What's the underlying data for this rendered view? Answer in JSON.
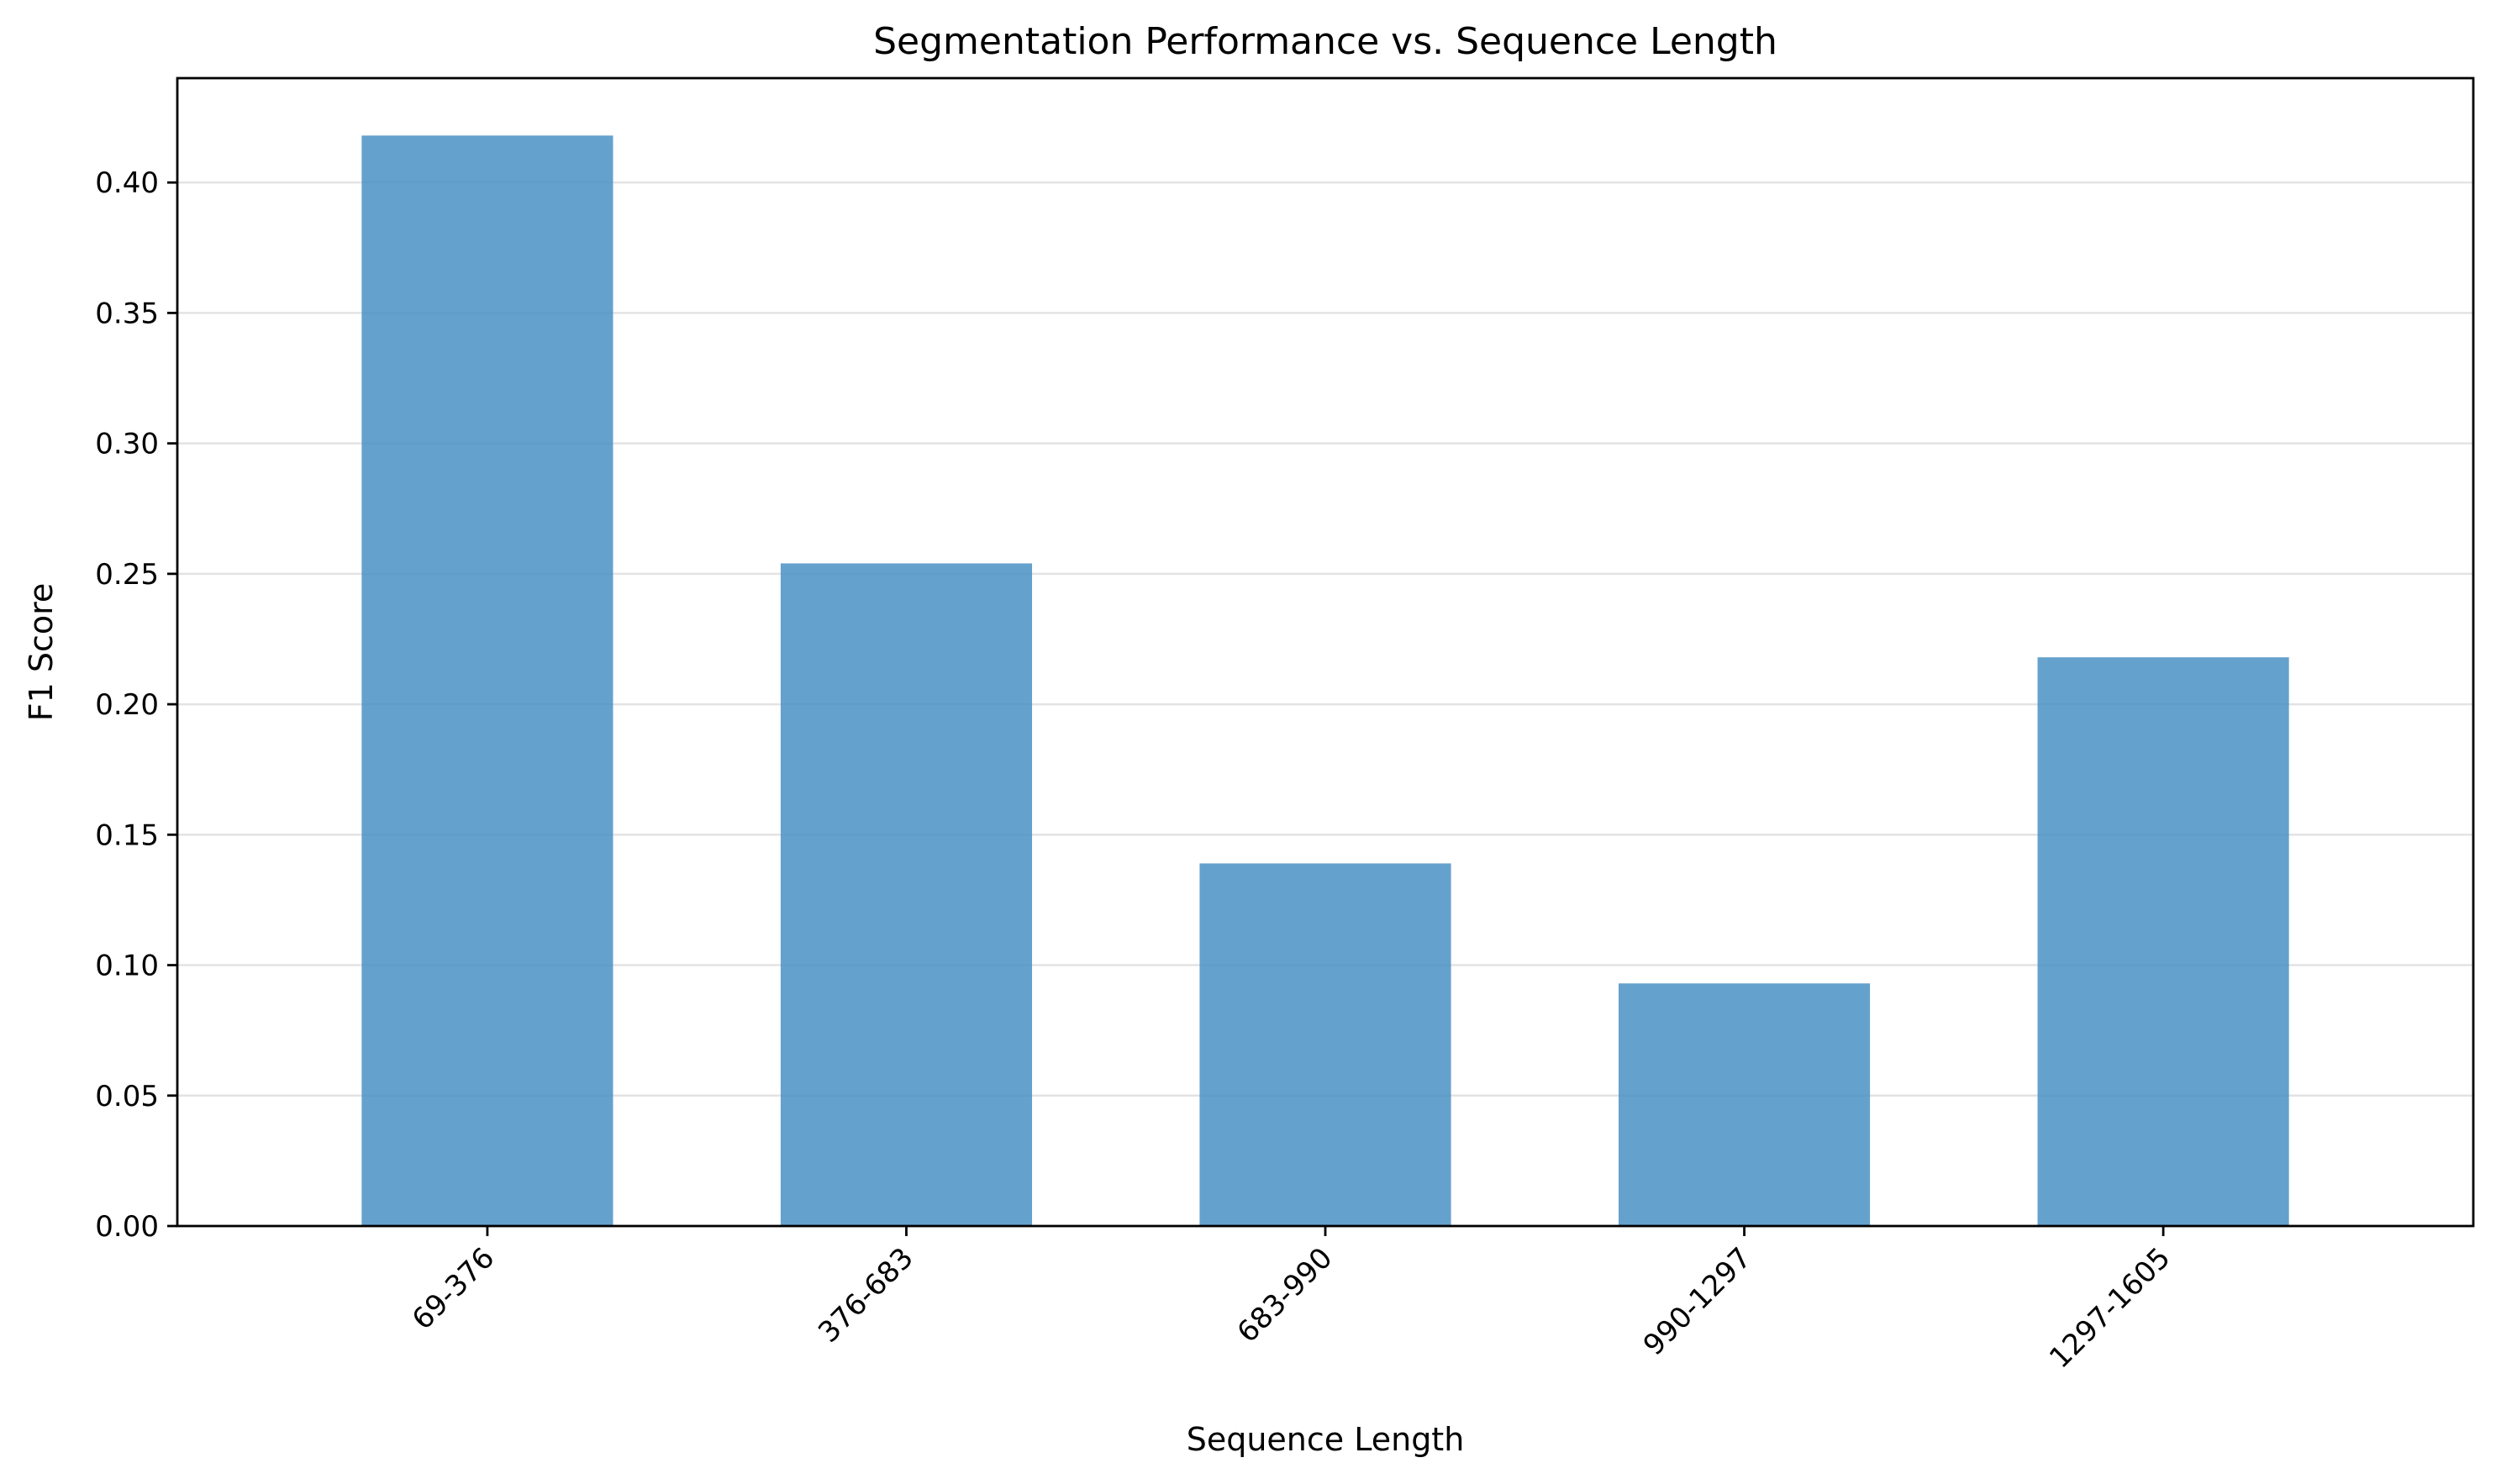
{
  "chart_data": {
    "type": "bar",
    "title": "Segmentation Performance vs. Sequence Length",
    "xlabel": "Sequence Length",
    "ylabel": "F1 Score",
    "categories": [
      "69-376",
      "376-683",
      "683-990",
      "990-1297",
      "1297-1605"
    ],
    "values": [
      0.418,
      0.254,
      0.139,
      0.093,
      0.218
    ],
    "ylim": [
      0,
      0.44
    ],
    "yticks": [
      0.0,
      0.05,
      0.1,
      0.15,
      0.2,
      0.25,
      0.3,
      0.35,
      0.4
    ],
    "ytick_labels": [
      "0.00",
      "0.05",
      "0.10",
      "0.15",
      "0.20",
      "0.25",
      "0.30",
      "0.35",
      "0.40"
    ],
    "grid": "y",
    "bar_color": "#4a90c4",
    "bar_opacity": 0.85,
    "xtick_rotation": "45"
  }
}
